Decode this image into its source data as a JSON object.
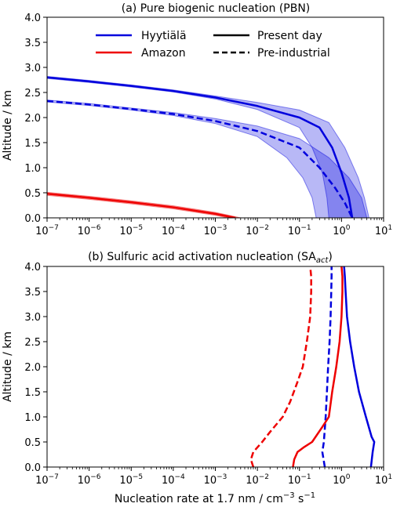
{
  "chart_data": [
    {
      "type": "line",
      "title": "(a) Pure biogenic nucleation (PBN)",
      "xlabel": "",
      "ylabel": "Altitude / km",
      "xscale": "log",
      "xlim": [
        1e-07,
        10
      ],
      "ylim": [
        0,
        4.0
      ],
      "x_ticks": [
        "10^-7",
        "10^-6",
        "10^-5",
        "10^-4",
        "10^-3",
        "10^-2",
        "10^-1",
        "10^0",
        "10^1"
      ],
      "y_ticks": [
        "0.0",
        "0.5",
        "1.0",
        "1.5",
        "2.0",
        "2.5",
        "3.0",
        "3.5",
        "4.0"
      ],
      "grid": false,
      "legend": {
        "placement": "top",
        "entries": [
          {
            "label": "Hyytiälä",
            "color": "#0000dd",
            "style": "solid"
          },
          {
            "label": "Amazon",
            "color": "#ee0000",
            "style": "solid"
          },
          {
            "label": "Present day",
            "color": "#000000",
            "style": "solid"
          },
          {
            "label": "Pre-industrial",
            "color": "#000000",
            "style": "dashed"
          }
        ]
      },
      "series": [
        {
          "site": "Hyytiälä",
          "period": "Present day",
          "color": "#0000dd",
          "style": "solid",
          "points": [
            [
              1e-07,
              2.8
            ],
            [
              1e-06,
              2.72
            ],
            [
              1e-05,
              2.63
            ],
            [
              0.0001,
              2.53
            ],
            [
              0.001,
              2.4
            ],
            [
              0.01,
              2.23
            ],
            [
              0.1,
              2.0
            ],
            [
              0.3,
              1.8
            ],
            [
              0.6,
              1.4
            ],
            [
              1.0,
              0.9
            ],
            [
              1.5,
              0.4
            ],
            [
              1.8,
              0.0
            ]
          ],
          "band_low": [
            [
              1e-07,
              2.78
            ],
            [
              1e-06,
              2.7
            ],
            [
              1e-05,
              2.61
            ],
            [
              0.0001,
              2.51
            ],
            [
              0.001,
              2.37
            ],
            [
              0.01,
              2.16
            ],
            [
              0.1,
              1.8
            ],
            [
              0.2,
              1.4
            ],
            [
              0.35,
              0.9
            ],
            [
              0.45,
              0.4
            ],
            [
              0.5,
              0.0
            ]
          ],
          "band_high": [
            [
              1e-07,
              2.82
            ],
            [
              1e-06,
              2.74
            ],
            [
              1e-05,
              2.65
            ],
            [
              0.0001,
              2.55
            ],
            [
              0.001,
              2.43
            ],
            [
              0.01,
              2.3
            ],
            [
              0.1,
              2.15
            ],
            [
              0.5,
              1.9
            ],
            [
              1.2,
              1.4
            ],
            [
              2.5,
              0.8
            ],
            [
              3.5,
              0.4
            ],
            [
              4.5,
              0.0
            ]
          ]
        },
        {
          "site": "Hyytiälä",
          "period": "Pre-industrial",
          "color": "#0000dd",
          "style": "dashed",
          "points": [
            [
              1e-07,
              2.33
            ],
            [
              1e-06,
              2.26
            ],
            [
              1e-05,
              2.17
            ],
            [
              0.0001,
              2.07
            ],
            [
              0.001,
              1.93
            ],
            [
              0.01,
              1.73
            ],
            [
              0.1,
              1.4
            ],
            [
              0.3,
              1.0
            ],
            [
              0.7,
              0.6
            ],
            [
              1.2,
              0.3
            ],
            [
              1.8,
              0.0
            ]
          ],
          "band_low": [
            [
              1e-07,
              2.31
            ],
            [
              1e-06,
              2.24
            ],
            [
              1e-05,
              2.15
            ],
            [
              0.0001,
              2.04
            ],
            [
              0.001,
              1.88
            ],
            [
              0.01,
              1.62
            ],
            [
              0.05,
              1.2
            ],
            [
              0.12,
              0.8
            ],
            [
              0.2,
              0.4
            ],
            [
              0.25,
              0.0
            ]
          ],
          "band_high": [
            [
              1e-07,
              2.35
            ],
            [
              1e-06,
              2.28
            ],
            [
              1e-05,
              2.19
            ],
            [
              0.0001,
              2.1
            ],
            [
              0.001,
              1.98
            ],
            [
              0.01,
              1.83
            ],
            [
              0.1,
              1.58
            ],
            [
              0.5,
              1.2
            ],
            [
              1.5,
              0.8
            ],
            [
              3.0,
              0.4
            ],
            [
              4.0,
              0.0
            ]
          ]
        },
        {
          "site": "Amazon",
          "period": "Present day",
          "color": "#ee0000",
          "style": "solid",
          "points": [
            [
              1e-07,
              0.48
            ],
            [
              1e-06,
              0.4
            ],
            [
              1e-05,
              0.31
            ],
            [
              0.0001,
              0.21
            ],
            [
              0.001,
              0.08
            ],
            [
              0.003,
              0.0
            ]
          ],
          "band_low": [
            [
              1e-07,
              0.45
            ],
            [
              1e-06,
              0.37
            ],
            [
              1e-05,
              0.28
            ],
            [
              0.0001,
              0.18
            ],
            [
              0.001,
              0.05
            ],
            [
              0.002,
              0.0
            ]
          ],
          "band_high": [
            [
              1e-07,
              0.51
            ],
            [
              1e-06,
              0.43
            ],
            [
              1e-05,
              0.34
            ],
            [
              0.0001,
              0.24
            ],
            [
              0.001,
              0.11
            ],
            [
              0.004,
              0.0
            ]
          ]
        }
      ]
    },
    {
      "type": "line",
      "title_main": "(b) Sulfuric acid activation nucleation (SA",
      "title_sub": "act",
      "title_end": ")",
      "xlabel_main": "Nucleation rate at 1.7 nm / cm",
      "xlabel_sup1": "−3",
      "xlabel_mid": " s",
      "xlabel_sup2": "−1",
      "ylabel": "Altitude / km",
      "xscale": "log",
      "xlim": [
        1e-07,
        10
      ],
      "ylim": [
        0,
        4.0
      ],
      "x_ticks": [
        "10^-7",
        "10^-6",
        "10^-5",
        "10^-4",
        "10^-3",
        "10^-2",
        "10^-1",
        "10^0",
        "10^1"
      ],
      "y_ticks": [
        "0.0",
        "0.5",
        "1.0",
        "1.5",
        "2.0",
        "2.5",
        "3.0",
        "3.5",
        "4.0"
      ],
      "grid": false,
      "series": [
        {
          "site": "Hyytiälä",
          "period": "Present day",
          "color": "#0000dd",
          "style": "solid",
          "points": [
            [
              5.0,
              0.0
            ],
            [
              5.5,
              0.3
            ],
            [
              6.0,
              0.5
            ],
            [
              5.2,
              0.6
            ],
            [
              3.8,
              1.0
            ],
            [
              2.6,
              1.5
            ],
            [
              2.0,
              2.0
            ],
            [
              1.6,
              2.5
            ],
            [
              1.35,
              3.0
            ],
            [
              1.25,
              3.5
            ],
            [
              1.2,
              3.8
            ],
            [
              1.15,
              4.0
            ]
          ]
        },
        {
          "site": "Hyytiälä",
          "period": "Pre-industrial",
          "color": "#0000dd",
          "style": "dashed",
          "points": [
            [
              0.4,
              0.0
            ],
            [
              0.35,
              0.3
            ],
            [
              0.38,
              0.5
            ],
            [
              0.42,
              1.0
            ],
            [
              0.45,
              1.5
            ],
            [
              0.48,
              2.0
            ],
            [
              0.52,
              2.5
            ],
            [
              0.55,
              3.0
            ],
            [
              0.57,
              3.5
            ],
            [
              0.58,
              3.8
            ],
            [
              0.58,
              4.0
            ]
          ]
        },
        {
          "site": "Amazon",
          "period": "Present day",
          "color": "#ee0000",
          "style": "solid",
          "points": [
            [
              0.07,
              0.0
            ],
            [
              0.075,
              0.15
            ],
            [
              0.09,
              0.3
            ],
            [
              0.13,
              0.4
            ],
            [
              0.2,
              0.5
            ],
            [
              0.35,
              0.8
            ],
            [
              0.5,
              1.0
            ],
            [
              0.6,
              1.5
            ],
            [
              0.75,
              2.0
            ],
            [
              0.9,
              2.5
            ],
            [
              1.0,
              3.0
            ],
            [
              1.05,
              3.5
            ],
            [
              1.05,
              3.8
            ],
            [
              1.0,
              4.0
            ]
          ]
        },
        {
          "site": "Amazon",
          "period": "Pre-industrial",
          "color": "#ee0000",
          "style": "dashed",
          "points": [
            [
              0.008,
              0.0
            ],
            [
              0.007,
              0.15
            ],
            [
              0.008,
              0.3
            ],
            [
              0.013,
              0.5
            ],
            [
              0.02,
              0.7
            ],
            [
              0.04,
              1.0
            ],
            [
              0.06,
              1.3
            ],
            [
              0.09,
              1.7
            ],
            [
              0.12,
              2.0
            ],
            [
              0.15,
              2.5
            ],
            [
              0.18,
              3.0
            ],
            [
              0.19,
              3.5
            ],
            [
              0.19,
              3.8
            ],
            [
              0.18,
              4.0
            ]
          ]
        }
      ]
    }
  ]
}
